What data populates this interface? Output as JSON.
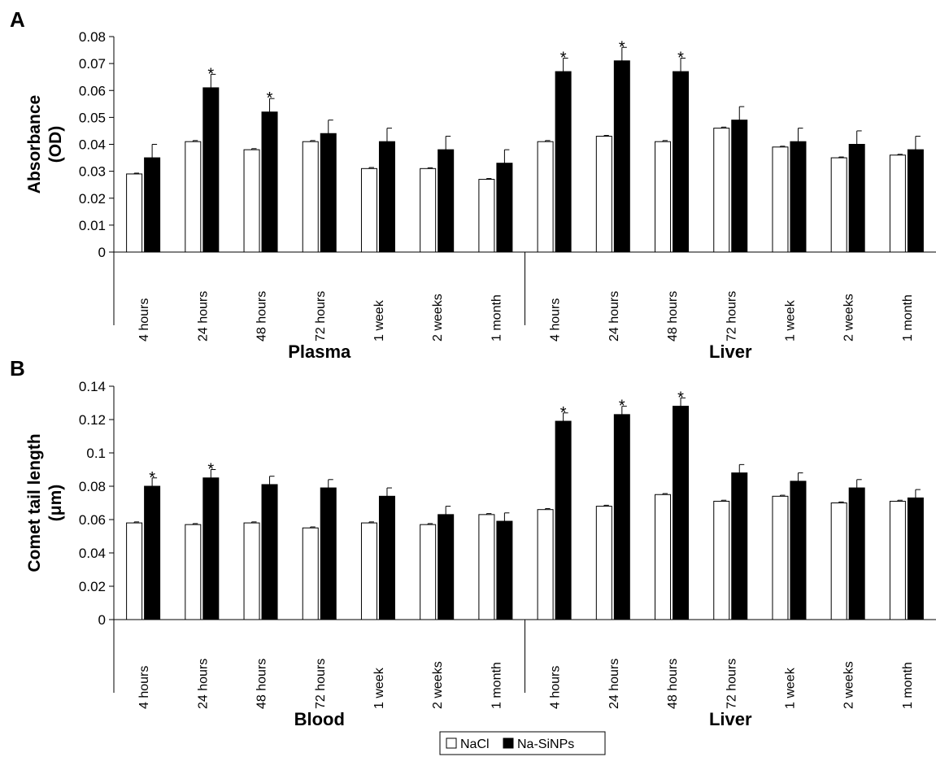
{
  "chart_data": [
    {
      "panel": "A",
      "type": "bar",
      "ylabel": [
        "Absorbance",
        "(OD)"
      ],
      "ylim": [
        0,
        0.08
      ],
      "yticks": [
        "0",
        "0.01",
        "0.02",
        "0.03",
        "0.04",
        "0.05",
        "0.06",
        "0.07",
        "0.08"
      ],
      "groups": [
        {
          "label": "Plasma",
          "categories": [
            "4 hours",
            "24 hours",
            "48 hours",
            "72 hours",
            "1 week",
            "2 weeks",
            "1 month"
          ]
        },
        {
          "label": "Liver",
          "categories": [
            "4 hours",
            "24 hours",
            "48 hours",
            "72 hours",
            "1 week",
            "2 weeks",
            "1 month"
          ]
        }
      ],
      "series": [
        {
          "name": "NaCl",
          "values": [
            0.029,
            0.041,
            0.038,
            0.041,
            0.031,
            0.031,
            0.027,
            0.041,
            0.043,
            0.041,
            0.046,
            0.039,
            0.035,
            0.036
          ],
          "errors": [
            0.0003,
            0.0004,
            0.0004,
            0.0004,
            0.0004,
            0.0003,
            0.0003,
            0.0004,
            0.0003,
            0.0004,
            0.0004,
            0.0003,
            0.0003,
            0.0003
          ]
        },
        {
          "name": "Na-SiNPs",
          "values": [
            0.035,
            0.061,
            0.052,
            0.044,
            0.041,
            0.038,
            0.033,
            0.067,
            0.071,
            0.067,
            0.049,
            0.041,
            0.04,
            0.038
          ],
          "errors": [
            0.005,
            0.005,
            0.005,
            0.005,
            0.005,
            0.005,
            0.005,
            0.005,
            0.005,
            0.005,
            0.005,
            0.005,
            0.005,
            0.005
          ]
        }
      ],
      "significant": [
        false,
        true,
        true,
        false,
        false,
        false,
        false,
        true,
        true,
        true,
        false,
        false,
        false,
        false
      ],
      "significance_mark": "*"
    },
    {
      "panel": "B",
      "type": "bar",
      "ylabel": [
        "Comet tail length",
        "(μm)"
      ],
      "ylim": [
        0,
        0.14
      ],
      "yticks": [
        "0",
        "0.02",
        "0.04",
        "0.06",
        "0.08",
        "0.1",
        "0.12",
        "0.14"
      ],
      "groups": [
        {
          "label": "Blood",
          "categories": [
            "4 hours",
            "24 hours",
            "48 hours",
            "72 hours",
            "1 week",
            "2 weeks",
            "1 month"
          ]
        },
        {
          "label": "Liver",
          "categories": [
            "4 hours",
            "24 hours",
            "48 hours",
            "72 hours",
            "1 week",
            "2 weeks",
            "1 month"
          ]
        }
      ],
      "series": [
        {
          "name": "NaCl",
          "values": [
            0.058,
            0.057,
            0.058,
            0.055,
            0.058,
            0.057,
            0.063,
            0.066,
            0.068,
            0.075,
            0.071,
            0.074,
            0.07,
            0.071
          ],
          "errors": [
            0.0006,
            0.0006,
            0.0006,
            0.0006,
            0.0006,
            0.0006,
            0.0006,
            0.0006,
            0.0006,
            0.0006,
            0.0006,
            0.0006,
            0.0006,
            0.0006
          ]
        },
        {
          "name": "Na-SiNPs",
          "values": [
            0.08,
            0.085,
            0.081,
            0.079,
            0.074,
            0.063,
            0.059,
            0.119,
            0.123,
            0.128,
            0.088,
            0.083,
            0.079,
            0.073
          ],
          "errors": [
            0.005,
            0.005,
            0.005,
            0.005,
            0.005,
            0.005,
            0.005,
            0.005,
            0.005,
            0.005,
            0.005,
            0.005,
            0.005,
            0.005
          ]
        }
      ],
      "significant": [
        true,
        true,
        false,
        false,
        false,
        false,
        false,
        true,
        true,
        true,
        false,
        false,
        false,
        false
      ],
      "significance_mark": "*"
    }
  ],
  "legend": {
    "items": [
      {
        "name": "NaCl",
        "color": "#ffffff"
      },
      {
        "name": "Na-SiNPs",
        "color": "#000000"
      }
    ],
    "placement": "bottom-center"
  }
}
